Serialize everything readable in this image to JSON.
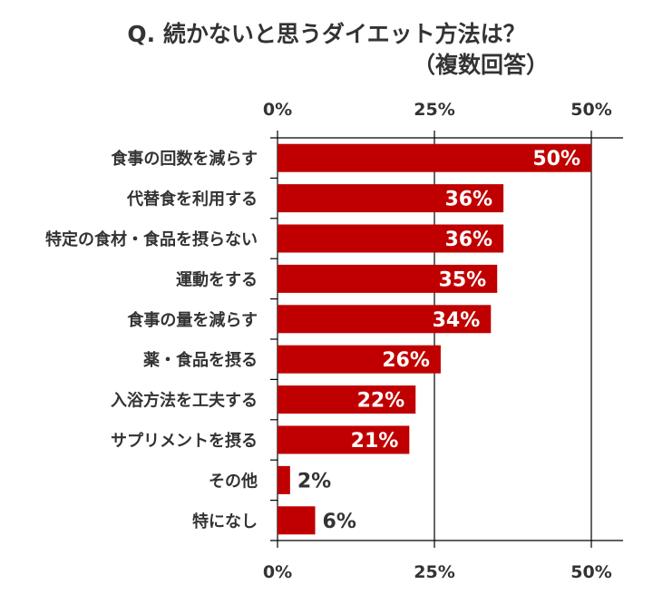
{
  "chart_data": {
    "type": "bar",
    "orientation": "horizontal",
    "title": "Q. 続かないと思うダイエット方法は？",
    "subtitle": "（複数回答）",
    "categories": [
      "食事の回数を減らす",
      "代替食を利用する",
      "特定の食材・食品を摂らない",
      "運動をする",
      "食事の量を減らす",
      "薬・食品を摂る",
      "入浴方法を工夫する",
      "サプリメントを摂る",
      "その他",
      "特になし"
    ],
    "values": [
      50,
      36,
      36,
      35,
      34,
      26,
      22,
      21,
      2,
      6
    ],
    "data_labels": [
      "50%",
      "36%",
      "36%",
      "35%",
      "34%",
      "26%",
      "22%",
      "21%",
      "2%",
      "6%"
    ],
    "xlim": [
      0,
      50
    ],
    "xticks": [
      0,
      25,
      50
    ],
    "xtick_labels": [
      "0%",
      "25%",
      "50%"
    ],
    "grid": true,
    "bar_color": "#c00000",
    "label_color_inside": "#ffffff",
    "label_color_outside": "#333333"
  }
}
